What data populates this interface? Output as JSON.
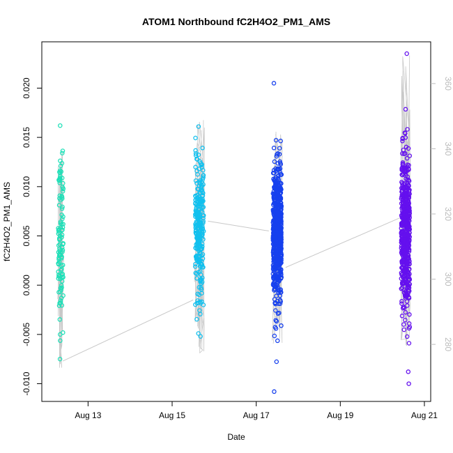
{
  "chart_data": {
    "type": "scatter",
    "title": "ATOM1 Northbound fC2H4O2_PM1_AMS",
    "xlabel": "Date",
    "ylabel": "fC2H4O2_PM1_AMS",
    "x_ticks": [
      {
        "label": "Aug 13",
        "value": 13
      },
      {
        "label": "Aug 15",
        "value": 15
      },
      {
        "label": "Aug 17",
        "value": 17
      },
      {
        "label": "Aug 19",
        "value": 19
      },
      {
        "label": "Aug 21",
        "value": 21
      }
    ],
    "xlim": [
      11.9,
      21.15
    ],
    "ylim": [
      -0.0118,
      0.0247
    ],
    "y_ticks": [
      "-0.010",
      "-0.005",
      "0.000",
      "0.005",
      "0.010",
      "0.015",
      "0.020"
    ],
    "y2_ticks": [
      "280",
      "300",
      "320",
      "340",
      "360"
    ],
    "y2lim": [
      262.5,
      372.8
    ],
    "grid": false,
    "legend": "none",
    "clusters": [
      {
        "x_center": 12.35,
        "x_spread": 0.12,
        "n": 110,
        "y_mean": 0.0045,
        "y_sd": 0.0042,
        "y_min": -0.0075,
        "y_max": 0.0162,
        "color": "#1ee0b8",
        "line_ymin": -0.0085,
        "line_ymax": 0.0135
      },
      {
        "x_center": 15.65,
        "x_spread": 0.2,
        "n": 260,
        "y_mean": 0.0055,
        "y_sd": 0.0035,
        "y_min": -0.0052,
        "y_max": 0.0161,
        "color": "#12c0ee",
        "line_ymin": -0.007,
        "line_ymax": 0.0168
      },
      {
        "x_center": 17.5,
        "x_spread": 0.2,
        "n": 650,
        "y_mean": 0.0055,
        "y_sd": 0.0033,
        "y_min": -0.0108,
        "y_max": 0.0205,
        "color": "#1640ee",
        "line_ymin": -0.006,
        "line_ymax": 0.0175
      },
      {
        "x_center": 20.55,
        "x_spread": 0.2,
        "n": 520,
        "y_mean": 0.0055,
        "y_sd": 0.0038,
        "y_min": -0.01,
        "y_max": 0.0235,
        "color": "#6410ee",
        "line_ymin": -0.007,
        "line_ymax": 0.0235
      }
    ],
    "transit_lines": [
      {
        "from": [
          12.4,
          -0.0077
        ],
        "to": [
          15.5,
          -0.0015
        ]
      },
      {
        "from": [
          15.85,
          0.0065
        ],
        "to": [
          17.3,
          0.0055
        ]
      },
      {
        "from": [
          17.7,
          0.0018
        ],
        "to": [
          20.4,
          0.0068
        ]
      }
    ],
    "trace_color": "#c8c8c8"
  }
}
